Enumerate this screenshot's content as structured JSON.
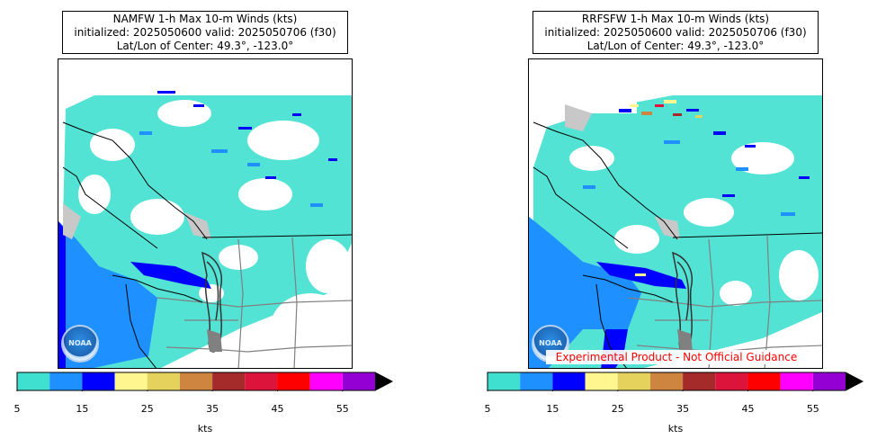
{
  "panels": [
    {
      "title_lines": [
        "NAMFW 1-h Max 10-m Winds (kts)",
        "initialized: 2025050600 valid: 2025050706 (f30)",
        "Lat/Lon of Center: 49.3°, -123.0°"
      ],
      "logo_label": "NOAA"
    },
    {
      "title_lines": [
        "RRFSFW 1-h Max 10-m Winds (kts)",
        "initialized: 2025050600 valid: 2025050706 (f30)",
        "Lat/Lon of Center: 49.3°, -123.0°"
      ],
      "logo_label": "NOAA",
      "disclaimer": "Experimental Product - Not Official Guidance"
    }
  ],
  "colorbar": {
    "levels": [
      5,
      10,
      15,
      20,
      25,
      30,
      35,
      40,
      45,
      50,
      55,
      60
    ],
    "colors": [
      "#40e0d0",
      "#1e90ff",
      "#0000ff",
      "#fff68f",
      "#e4d25c",
      "#cd853f",
      "#a52a2a",
      "#dc143c",
      "#ff0000",
      "#ff00ff",
      "#9400d3"
    ],
    "extend_color": "#000000",
    "tick_labels": [
      "5",
      "15",
      "25",
      "35",
      "45",
      "55"
    ],
    "unit": "kts"
  },
  "colors": {
    "land_gray": "#c8c8c8",
    "border_gray": "#808080",
    "coast": "#000000"
  }
}
